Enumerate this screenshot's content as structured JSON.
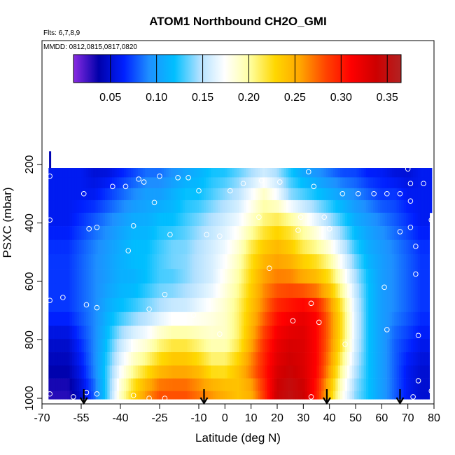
{
  "chart_data": {
    "type": "heatmap",
    "title": "ATOM1 Northbound CH2O_GMI",
    "flights_label": "Flts: 6,7,8,9",
    "dates_label": "MMDD: 0812,0815,0817,0820",
    "xlabel": "Latitude (deg N)",
    "ylabel": "PSXC (mbar)",
    "xlim": [
      -70,
      80
    ],
    "ylim": [
      1000,
      0
    ],
    "x_ticks": [
      -70,
      -55,
      -40,
      -25,
      -10,
      0,
      10,
      20,
      30,
      40,
      50,
      60,
      70,
      80
    ],
    "y_ticks": [
      200,
      400,
      600,
      800,
      1000
    ],
    "colorbar": {
      "min": 0.01,
      "max": 0.365,
      "ticks": [
        "0.05",
        "0.10",
        "0.15",
        "0.20",
        "0.25",
        "0.30",
        "0.35"
      ],
      "tick_values": [
        0.05,
        0.1,
        0.15,
        0.2,
        0.25,
        0.3,
        0.35
      ],
      "colors": [
        "#8a2be2",
        "#0000aa",
        "#0020ff",
        "#1e90ff",
        "#00bfff",
        "#b0e0ff",
        "#ffffff",
        "#ffffa0",
        "#ffd700",
        "#ffa500",
        "#ff4500",
        "#ff0000",
        "#cd0000",
        "#b22222"
      ]
    },
    "pressure_levels": [
      212,
      244,
      281,
      322,
      365,
      411,
      458,
      507,
      557,
      607,
      657,
      705,
      752,
      797,
      842,
      888,
      932,
      975,
      1000
    ],
    "latitude_nodes": [
      -67,
      -60,
      -55,
      -50,
      -45,
      -40,
      -35,
      -30,
      -25,
      -20,
      -15,
      -10,
      -5,
      0,
      5,
      10,
      15,
      20,
      25,
      30,
      35,
      40,
      45,
      50,
      55,
      60,
      65,
      70,
      75,
      79
    ],
    "ch2o_profiles": [
      {
        "p": 212,
        "values": [
          0.06,
          0.06,
          0.06,
          0.05,
          0.05,
          0.06,
          0.07,
          0.08,
          0.08,
          0.09,
          0.1,
          0.11,
          0.12,
          0.12,
          0.13,
          0.14,
          0.15,
          0.14,
          0.12,
          0.1,
          0.09,
          0.08,
          0.07,
          0.07,
          0.06,
          0.06,
          0.05,
          0.05,
          0.06,
          0.06
        ]
      },
      {
        "p": 300,
        "values": [
          0.06,
          0.06,
          0.06,
          0.06,
          0.07,
          0.08,
          0.09,
          0.1,
          0.1,
          0.11,
          0.12,
          0.12,
          0.13,
          0.14,
          0.15,
          0.17,
          0.19,
          0.17,
          0.14,
          0.13,
          0.12,
          0.11,
          0.1,
          0.09,
          0.08,
          0.07,
          0.07,
          0.06,
          0.06,
          0.06
        ]
      },
      {
        "p": 400,
        "values": [
          0.06,
          0.06,
          0.07,
          0.08,
          0.09,
          0.1,
          0.11,
          0.11,
          0.12,
          0.12,
          0.13,
          0.14,
          0.15,
          0.16,
          0.17,
          0.19,
          0.21,
          0.22,
          0.21,
          0.19,
          0.17,
          0.15,
          0.13,
          0.11,
          0.1,
          0.09,
          0.08,
          0.07,
          0.06,
          0.06
        ]
      },
      {
        "p": 500,
        "values": [
          0.07,
          0.07,
          0.08,
          0.09,
          0.1,
          0.11,
          0.12,
          0.12,
          0.13,
          0.14,
          0.14,
          0.15,
          0.16,
          0.17,
          0.19,
          0.22,
          0.24,
          0.25,
          0.24,
          0.22,
          0.21,
          0.19,
          0.16,
          0.13,
          0.11,
          0.1,
          0.09,
          0.08,
          0.07,
          0.07
        ]
      },
      {
        "p": 600,
        "values": [
          0.07,
          0.07,
          0.08,
          0.09,
          0.1,
          0.11,
          0.11,
          0.12,
          0.13,
          0.13,
          0.14,
          0.15,
          0.16,
          0.18,
          0.2,
          0.23,
          0.26,
          0.27,
          0.27,
          0.26,
          0.25,
          0.23,
          0.19,
          0.15,
          0.12,
          0.1,
          0.09,
          0.08,
          0.07,
          0.07
        ]
      },
      {
        "p": 700,
        "values": [
          0.07,
          0.07,
          0.08,
          0.09,
          0.11,
          0.12,
          0.13,
          0.14,
          0.15,
          0.16,
          0.16,
          0.17,
          0.18,
          0.19,
          0.21,
          0.24,
          0.27,
          0.3,
          0.31,
          0.32,
          0.31,
          0.27,
          0.22,
          0.16,
          0.12,
          0.1,
          0.09,
          0.08,
          0.07,
          0.07
        ]
      },
      {
        "p": 800,
        "values": [
          0.05,
          0.05,
          0.07,
          0.09,
          0.12,
          0.15,
          0.17,
          0.18,
          0.2,
          0.21,
          0.21,
          0.2,
          0.19,
          0.19,
          0.21,
          0.25,
          0.29,
          0.32,
          0.33,
          0.33,
          0.31,
          0.27,
          0.22,
          0.16,
          0.12,
          0.1,
          0.08,
          0.07,
          0.06,
          0.06
        ]
      },
      {
        "p": 900,
        "values": [
          0.04,
          0.04,
          0.06,
          0.09,
          0.13,
          0.17,
          0.2,
          0.22,
          0.24,
          0.25,
          0.25,
          0.24,
          0.22,
          0.22,
          0.24,
          0.27,
          0.3,
          0.33,
          0.34,
          0.33,
          0.31,
          0.26,
          0.2,
          0.15,
          0.12,
          0.1,
          0.08,
          0.06,
          0.05,
          0.05
        ]
      },
      {
        "p": 975,
        "values": [
          0.03,
          0.03,
          0.05,
          0.08,
          0.13,
          0.19,
          0.23,
          0.26,
          0.28,
          0.28,
          0.28,
          0.27,
          0.26,
          0.25,
          0.24,
          0.25,
          0.29,
          0.34,
          0.35,
          0.34,
          0.3,
          0.24,
          0.18,
          0.14,
          0.12,
          0.1,
          0.08,
          0.06,
          0.05,
          0.05
        ]
      }
    ],
    "observation_points": [
      {
        "lat": -67,
        "p": 240
      },
      {
        "lat": -67,
        "p": 390
      },
      {
        "lat": -67,
        "p": 665
      },
      {
        "lat": -67,
        "p": 985
      },
      {
        "lat": -62,
        "p": 655
      },
      {
        "lat": -58,
        "p": 995
      },
      {
        "lat": -54,
        "p": 300
      },
      {
        "lat": -52,
        "p": 420
      },
      {
        "lat": -53,
        "p": 680
      },
      {
        "lat": -53,
        "p": 980
      },
      {
        "lat": -49,
        "p": 415
      },
      {
        "lat": -49,
        "p": 690
      },
      {
        "lat": -49,
        "p": 985
      },
      {
        "lat": -43,
        "p": 275
      },
      {
        "lat": -38,
        "p": 275
      },
      {
        "lat": -37,
        "p": 495
      },
      {
        "lat": -35,
        "p": 410
      },
      {
        "lat": -33,
        "p": 250
      },
      {
        "lat": -31,
        "p": 260
      },
      {
        "lat": -35,
        "p": 990
      },
      {
        "lat": -29,
        "p": 695
      },
      {
        "lat": -29,
        "p": 1000
      },
      {
        "lat": -27,
        "p": 330
      },
      {
        "lat": -25,
        "p": 240
      },
      {
        "lat": -23,
        "p": 645
      },
      {
        "lat": -21,
        "p": 440
      },
      {
        "lat": -23,
        "p": 1000
      },
      {
        "lat": -18,
        "p": 245
      },
      {
        "lat": -14,
        "p": 245
      },
      {
        "lat": -12,
        "p": 715
      },
      {
        "lat": -10,
        "p": 290
      },
      {
        "lat": -7,
        "p": 440
      },
      {
        "lat": -2,
        "p": 445
      },
      {
        "lat": 2,
        "p": 290
      },
      {
        "lat": -2,
        "p": 780
      },
      {
        "lat": 7,
        "p": 265
      },
      {
        "lat": 13,
        "p": 380
      },
      {
        "lat": 17,
        "p": 555
      },
      {
        "lat": 14,
        "p": 255
      },
      {
        "lat": 21,
        "p": 260
      },
      {
        "lat": 26,
        "p": 735
      },
      {
        "lat": 28,
        "p": 425
      },
      {
        "lat": 29,
        "p": 380
      },
      {
        "lat": 32,
        "p": 225
      },
      {
        "lat": 33,
        "p": 675
      },
      {
        "lat": 33,
        "p": 995
      },
      {
        "lat": 34,
        "p": 275
      },
      {
        "lat": 36,
        "p": 740
      },
      {
        "lat": 38,
        "p": 380
      },
      {
        "lat": 40,
        "p": 420
      },
      {
        "lat": 45,
        "p": 300
      },
      {
        "lat": 46,
        "p": 815
      },
      {
        "lat": 51,
        "p": 300
      },
      {
        "lat": 57,
        "p": 300
      },
      {
        "lat": 61,
        "p": 620
      },
      {
        "lat": 62,
        "p": 765
      },
      {
        "lat": 62,
        "p": 300
      },
      {
        "lat": 67,
        "p": 300
      },
      {
        "lat": 67,
        "p": 430
      },
      {
        "lat": 70,
        "p": 215
      },
      {
        "lat": 71,
        "p": 265
      },
      {
        "lat": 71,
        "p": 415
      },
      {
        "lat": 71,
        "p": 325
      },
      {
        "lat": 73,
        "p": 480
      },
      {
        "lat": 73,
        "p": 575
      },
      {
        "lat": 74,
        "p": 785
      },
      {
        "lat": 74,
        "p": 940
      },
      {
        "lat": 76,
        "p": 265
      },
      {
        "lat": 72,
        "p": 995
      },
      {
        "lat": 79,
        "p": 390
      },
      {
        "lat": 79,
        "p": 975
      }
    ],
    "flight_markers": [
      -54,
      -8,
      39,
      67
    ]
  }
}
